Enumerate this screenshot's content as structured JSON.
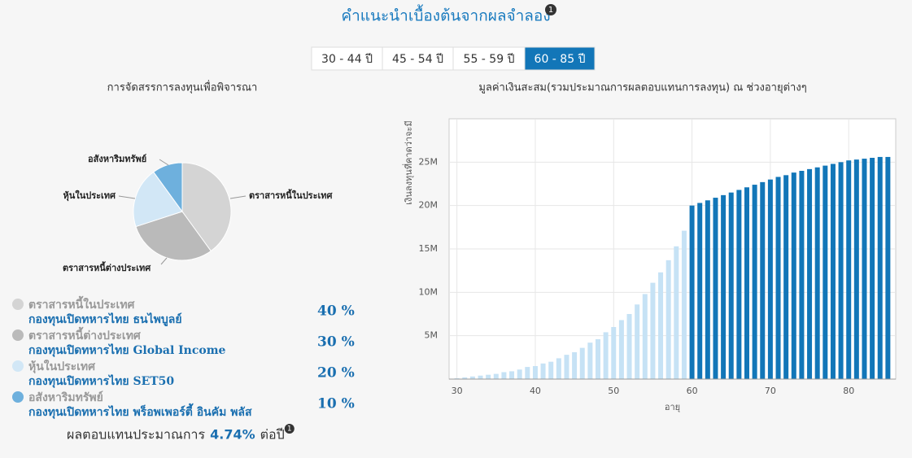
{
  "header": {
    "title": "คำแนะนำเบื้องต้นจากผลจำลอง",
    "note": "1"
  },
  "tabs": {
    "items": [
      "30 - 44 ปี",
      "45 - 54 ปี",
      "55 - 59 ปี",
      "60 - 85 ปี"
    ],
    "active": 3
  },
  "chart_data": [
    {
      "type": "pie",
      "title": "การจัดสรรการลงทุนเพื่อพิจารณา",
      "categories": [
        "ตราสารหนี้ในประเทศ",
        "ตราสารหนี้ต่างประเทศ",
        "หุ้นในประเทศ",
        "อสังหาริมทรัพย์"
      ],
      "values": [
        40,
        30,
        20,
        10
      ],
      "value_labels": [
        "40 %",
        "30 %",
        "20 %",
        "10 %"
      ],
      "colors": [
        "#d4d4d4",
        "#bababa",
        "#d2e7f6",
        "#6eb0dd"
      ]
    },
    {
      "type": "bar",
      "title": "มูลค่าเงินสะสม(รวมประมาณการผลตอบแทนการลงทุน) ณ ช่วงอายุต่างๆ",
      "ylabel": "เงินลงทุนที่คาดว่าจะมี",
      "xlabel": "อายุ",
      "x": [
        30,
        31,
        32,
        33,
        34,
        35,
        36,
        37,
        38,
        39,
        40,
        41,
        42,
        43,
        44,
        45,
        46,
        47,
        48,
        49,
        50,
        51,
        52,
        53,
        54,
        55,
        56,
        57,
        58,
        59,
        60,
        61,
        62,
        63,
        64,
        65,
        66,
        67,
        68,
        69,
        70,
        71,
        72,
        73,
        74,
        75,
        76,
        77,
        78,
        79,
        80,
        81,
        82,
        83,
        84,
        85
      ],
      "values": [
        100000,
        200000,
        300000,
        400000,
        500000,
        600000,
        800000,
        900000,
        1100000,
        1400000,
        1500000,
        1800000,
        2000000,
        2400000,
        2800000,
        3100000,
        3600000,
        4200000,
        4600000,
        5400000,
        6000000,
        6800000,
        7500000,
        8600000,
        9800000,
        11100000,
        12300000,
        13700000,
        15300000,
        17100000,
        20000000,
        20300000,
        20600000,
        20900000,
        21200000,
        21500000,
        21800000,
        22100000,
        22400000,
        22700000,
        23000000,
        23300000,
        23500000,
        23800000,
        24000000,
        24200000,
        24400000,
        24600000,
        24800000,
        25000000,
        25200000,
        25300000,
        25400000,
        25500000,
        25600000,
        25600000
      ],
      "bar_colors": [
        "#c6e2f5",
        "#c6e2f5",
        "#c6e2f5",
        "#c6e2f5",
        "#c6e2f5",
        "#c6e2f5",
        "#c6e2f5",
        "#c6e2f5",
        "#c6e2f5",
        "#c6e2f5",
        "#c6e2f5",
        "#c6e2f5",
        "#c6e2f5",
        "#c6e2f5",
        "#c6e2f5",
        "#c6e2f5",
        "#c6e2f5",
        "#c6e2f5",
        "#c6e2f5",
        "#c6e2f5",
        "#c6e2f5",
        "#c6e2f5",
        "#c6e2f5",
        "#c6e2f5",
        "#c6e2f5",
        "#c6e2f5",
        "#c6e2f5",
        "#c6e2f5",
        "#c6e2f5",
        "#c6e2f5",
        "#1276b8",
        "#1276b8",
        "#1276b8",
        "#1276b8",
        "#1276b8",
        "#1276b8",
        "#1276b8",
        "#1276b8",
        "#1276b8",
        "#1276b8",
        "#1276b8",
        "#1276b8",
        "#1276b8",
        "#1276b8",
        "#1276b8",
        "#1276b8",
        "#1276b8",
        "#1276b8",
        "#1276b8",
        "#1276b8",
        "#1276b8",
        "#1276b8",
        "#1276b8",
        "#1276b8",
        "#1276b8",
        "#1276b8"
      ],
      "xlim": [
        29,
        86
      ],
      "xticks": [
        30,
        40,
        50,
        60,
        70,
        80
      ],
      "ylim": [
        0,
        30000000
      ],
      "yticks": [
        {
          "value": 5000000,
          "label": "5M"
        },
        {
          "value": 10000000,
          "label": "10M"
        },
        {
          "value": 15000000,
          "label": "15M"
        },
        {
          "value": 20000000,
          "label": "20M"
        },
        {
          "value": 25000000,
          "label": "25M"
        }
      ],
      "grid": true
    }
  ],
  "allocation": {
    "funds": [
      "กองทุนเปิดทหารไทย ธนไพบูลย์",
      "กองทุนเปิดทหารไทย Global Income",
      "กองทุนเปิดทหารไทย SET50",
      "กองทุนเปิดทหารไทย พร็อพเพอร์ตี้ อินคัม พลัส"
    ]
  },
  "summary": {
    "label": "ผลตอบแทนประมาณการ",
    "rate": "4.74%",
    "unit": "ต่อปี",
    "note": "1"
  }
}
